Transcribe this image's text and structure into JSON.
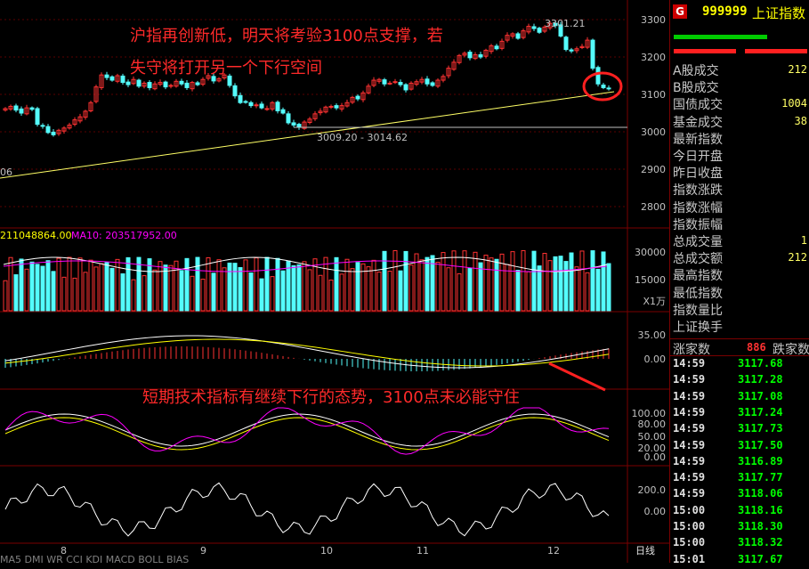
{
  "header": {
    "flag": "G",
    "code": "999999",
    "name": "上证指数"
  },
  "annotations": {
    "line1": "沪指再创新低，明天将考验3100点支撑，若",
    "line2": "失守将打开另一个下行空间",
    "line3": "短期技术指标有继续下行的态势，3100点未必能守住"
  },
  "price_axis": [
    "3300",
    "3200",
    "3100",
    "3000",
    "2900",
    "2800"
  ],
  "price_high_label": "3301.21",
  "price_low_label": "3009.20 - 3014.62",
  "left_edge_label": "06",
  "volume": {
    "vol_label": "211048864.00",
    "ma_label": "MA10: 203517952.00",
    "axis": [
      "30000",
      "15000"
    ],
    "unit": "X1万"
  },
  "macd_axis": [
    "35.00",
    "0.00"
  ],
  "kdj_axis": [
    "100.00",
    "80.00",
    "50.00",
    "20.00",
    "0.00"
  ],
  "osc_axis": [
    "200.0",
    "0.00"
  ],
  "months": [
    "8",
    "9",
    "10",
    "11",
    "12"
  ],
  "period": "日线",
  "tabs_partial": "MA5 DMI WR CCI KDJ MACD BOLL BIAS",
  "quote_labels": [
    "A股成交",
    "B股成交",
    "国债成交",
    "基金成交",
    "最新指数",
    "今日开盘",
    "昨日收盘",
    "指数涨跌",
    "指数涨幅",
    "指数振幅",
    "总成交量",
    "总成交额",
    "最高指数",
    "最低指数",
    "指数量比",
    "上证换手"
  ],
  "quote_values": [
    "212",
    "",
    "1004",
    "38",
    "",
    "",
    "",
    "",
    "",
    "",
    "1",
    "212",
    "",
    "",
    "",
    ""
  ],
  "breadth": {
    "up_label": "涨家数",
    "up_value": "886",
    "down_label": "跌家数"
  },
  "ticks": [
    {
      "time": "14:59",
      "value": "3117.68"
    },
    {
      "time": "14:59",
      "value": "3117.28"
    },
    {
      "time": "14:59",
      "value": "3117.08"
    },
    {
      "time": "14:59",
      "value": "3117.24"
    },
    {
      "time": "14:59",
      "value": "3117.73"
    },
    {
      "time": "14:59",
      "value": "3117.50"
    },
    {
      "time": "14:59",
      "value": "3116.89"
    },
    {
      "time": "14:59",
      "value": "3117.77"
    },
    {
      "time": "14:59",
      "value": "3118.06"
    },
    {
      "time": "15:00",
      "value": "3118.16"
    },
    {
      "time": "15:00",
      "value": "3118.30"
    },
    {
      "time": "15:00",
      "value": "3118.32"
    },
    {
      "time": "15:01",
      "value": "3117.67"
    }
  ],
  "colors": {
    "up": "#ff3232",
    "down": "#54fcfc",
    "grid": "#7a0000",
    "ma": "#ffff00",
    "bg": "#000000"
  }
}
